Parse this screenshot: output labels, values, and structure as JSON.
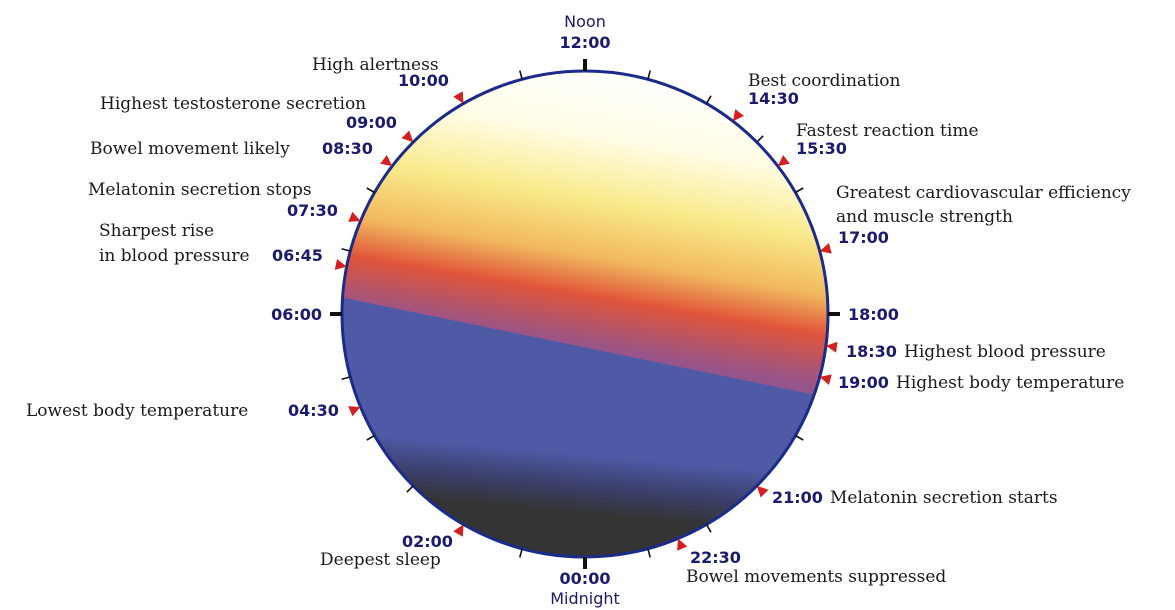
{
  "diagram": {
    "noon_label": "Noon",
    "midnight_label": "Midnight",
    "colors": {
      "rim": "#1c2a8a",
      "time_text": "#1a1a6e",
      "marker": "#d42020",
      "night": "#343434",
      "dusk_blue": "#4e5aa6",
      "dusk_purple": "#7a5aa0",
      "sunset_orange": "#e0553a",
      "morning_yellow": "#f5e47a",
      "day_white": "#ffffff"
    },
    "cardinal_times": {
      "t1200": "12:00",
      "t0000": "00:00",
      "t0600": "06:00",
      "t1800": "18:00"
    },
    "events": [
      {
        "id": "high-alertness",
        "time": "10:00",
        "lines": [
          "High alertness"
        ]
      },
      {
        "id": "highest-testosterone",
        "time": "09:00",
        "lines": [
          "Highest testosterone secretion"
        ]
      },
      {
        "id": "bowel-movement-likely",
        "time": "08:30",
        "lines": [
          "Bowel movement likely"
        ]
      },
      {
        "id": "melatonin-stops",
        "time": "07:30",
        "lines": [
          "Melatonin secretion stops"
        ]
      },
      {
        "id": "sharpest-rise-bp",
        "time": "06:45",
        "lines": [
          "Sharpest rise",
          "in blood pressure"
        ]
      },
      {
        "id": "lowest-body-temp",
        "time": "04:30",
        "lines": [
          "Lowest body temperature"
        ]
      },
      {
        "id": "deepest-sleep",
        "time": "02:00",
        "lines": [
          "Deepest sleep"
        ]
      },
      {
        "id": "best-coordination",
        "time": "14:30",
        "lines": [
          "Best coordination"
        ]
      },
      {
        "id": "fastest-reaction",
        "time": "15:30",
        "lines": [
          "Fastest reaction time"
        ]
      },
      {
        "id": "cardio-efficiency",
        "time": "17:00",
        "lines": [
          "Greatest cardiovascular efficiency",
          "and muscle strength"
        ]
      },
      {
        "id": "highest-bp",
        "time": "18:30",
        "lines": [
          "Highest blood pressure"
        ]
      },
      {
        "id": "highest-body-temp",
        "time": "19:00",
        "lines": [
          "Highest body temperature"
        ]
      },
      {
        "id": "melatonin-starts",
        "time": "21:00",
        "lines": [
          "Melatonin secretion starts"
        ]
      },
      {
        "id": "bowel-suppressed",
        "time": "22:30",
        "lines": [
          "Bowel movements suppressed"
        ]
      }
    ]
  }
}
